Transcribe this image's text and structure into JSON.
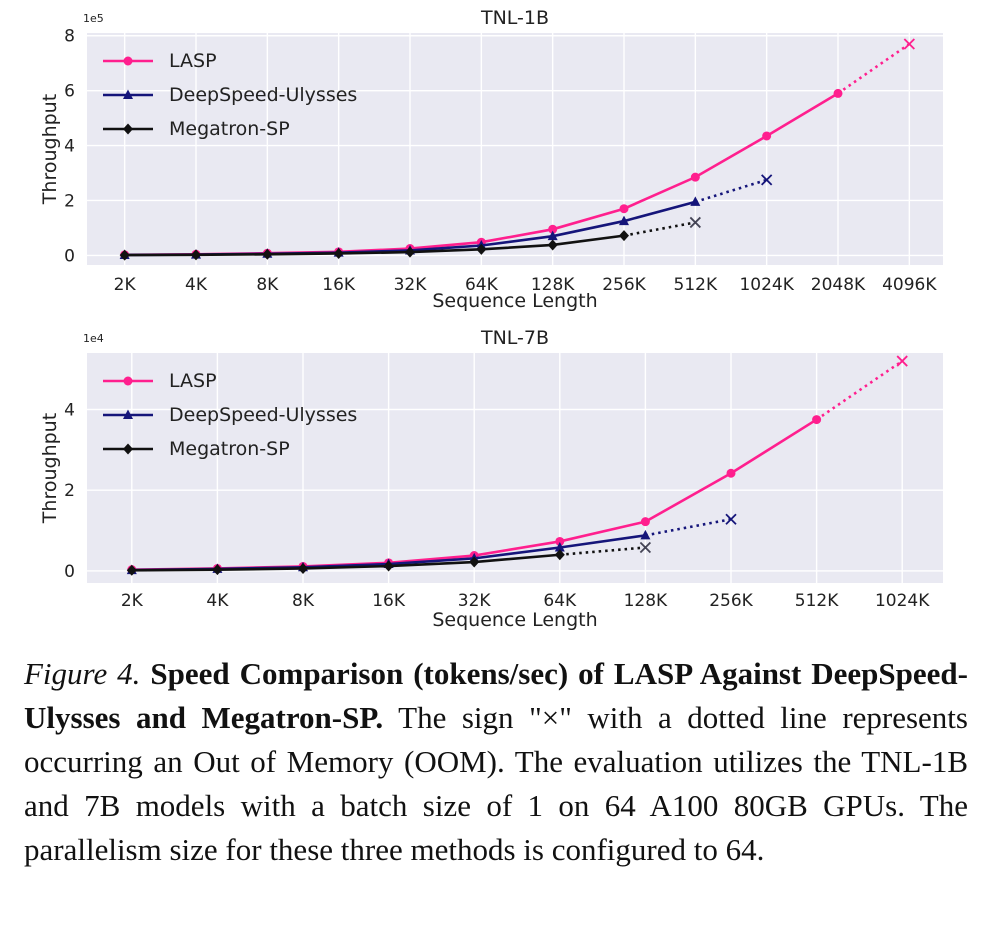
{
  "chart_data": [
    {
      "type": "line",
      "title": "TNL-1B",
      "xlabel": "Sequence Length",
      "ylabel": "Throughput",
      "y_scale_label": "1e5",
      "categories": [
        "2K",
        "4K",
        "8K",
        "16K",
        "32K",
        "64K",
        "128K",
        "256K",
        "512K",
        "1024K",
        "2048K",
        "4096K"
      ],
      "ylim": [
        -0.35,
        8.1
      ],
      "yticks": [
        0,
        2,
        4,
        6,
        8
      ],
      "grid": true,
      "legend_position": "top-left",
      "series": [
        {
          "name": "LASP",
          "color": "#ff1f8e",
          "marker": "circle",
          "values": [
            0.02,
            0.04,
            0.08,
            0.13,
            0.25,
            0.48,
            0.95,
            1.7,
            2.85,
            4.35,
            5.9,
            7.7
          ],
          "oom_index": 11
        },
        {
          "name": "DeepSpeed-Ulysses",
          "color": "#15157a",
          "marker": "triangle",
          "values": [
            0.015,
            0.03,
            0.06,
            0.1,
            0.18,
            0.36,
            0.7,
            1.25,
            1.95,
            2.75,
            null,
            null
          ],
          "oom_index": 9
        },
        {
          "name": "Megatron-SP",
          "color": "#111111",
          "marker": "diamond",
          "values": [
            0.01,
            0.02,
            0.04,
            0.07,
            0.12,
            0.22,
            0.38,
            0.72,
            1.2,
            null,
            null,
            null
          ],
          "oom_index": 8
        }
      ]
    },
    {
      "type": "line",
      "title": "TNL-7B",
      "xlabel": "Sequence Length",
      "ylabel": "Throughput",
      "y_scale_label": "1e4",
      "categories": [
        "2K",
        "4K",
        "8K",
        "16K",
        "32K",
        "64K",
        "128K",
        "256K",
        "512K",
        "1024K"
      ],
      "ylim": [
        -0.3,
        5.4
      ],
      "yticks": [
        0,
        2,
        4
      ],
      "grid": true,
      "legend_position": "top-left",
      "series": [
        {
          "name": "LASP",
          "color": "#ff1f8e",
          "marker": "circle",
          "values": [
            0.03,
            0.06,
            0.11,
            0.2,
            0.38,
            0.73,
            1.22,
            2.42,
            3.75,
            5.2
          ],
          "oom_index": 9
        },
        {
          "name": "DeepSpeed-Ulysses",
          "color": "#15157a",
          "marker": "triangle",
          "values": [
            0.02,
            0.05,
            0.09,
            0.17,
            0.31,
            0.58,
            0.88,
            1.28,
            null,
            null
          ],
          "oom_index": 7
        },
        {
          "name": "Megatron-SP",
          "color": "#111111",
          "marker": "diamond",
          "values": [
            0.015,
            0.03,
            0.06,
            0.12,
            0.22,
            0.4,
            0.58,
            null,
            null,
            null
          ],
          "oom_index": 6
        }
      ]
    }
  ],
  "caption": {
    "figure_label": "Figure 4.",
    "bold_text": "Speed Comparison (tokens/sec) of LASP Against DeepSpeed-Ulysses and Megatron-SP.",
    "body_text": "The sign \"×\" with a dotted line represents occurring an Out of Memory (OOM). The evaluation utilizes the TNL-1B and 7B models with a batch size of 1 on 64 A100 80GB GPUs. The parallelism size for these three methods is configured to 64."
  }
}
